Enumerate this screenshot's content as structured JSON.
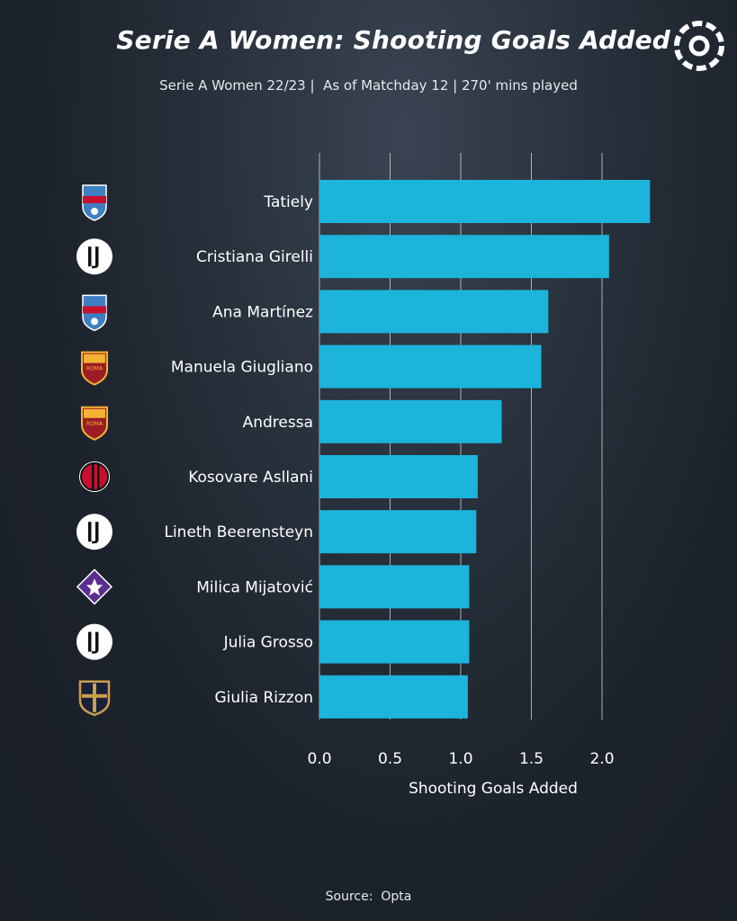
{
  "header": {
    "title": "Serie A Women: Shooting Goals Added",
    "subtitle": "Serie A Women 22/23 |  As of Matchday 12 | 270' mins played"
  },
  "source": "Source:  Opta",
  "colors": {
    "bar": "#1cb4db",
    "background": "#1c222b",
    "grid": "#d8dce2",
    "text": "#ffffff"
  },
  "chart_data": {
    "type": "bar",
    "orientation": "horizontal",
    "categories": [
      "Tatiely",
      "Cristiana Girelli",
      "Ana Martínez",
      "Manuela Giugliano",
      "Andressa",
      "Kosovare Asllani",
      "Lineth Beerensteyn",
      "Milica Mijatović",
      "Julia Grosso",
      "Giulia Rizzon"
    ],
    "values": [
      2.34,
      2.05,
      1.62,
      1.57,
      1.29,
      1.12,
      1.11,
      1.06,
      1.06,
      1.05
    ],
    "teams": [
      "pomigliano",
      "juventus",
      "pomigliano",
      "roma",
      "roma",
      "milan",
      "juventus",
      "fiorentina",
      "juventus",
      "parma"
    ],
    "xlabel": "Shooting Goals Added",
    "ylabel": "",
    "xlim": [
      0,
      2.4
    ],
    "xticks": [
      "0.0",
      "0.5",
      "1.0",
      "1.5",
      "2.0"
    ],
    "grid": "vertical"
  }
}
